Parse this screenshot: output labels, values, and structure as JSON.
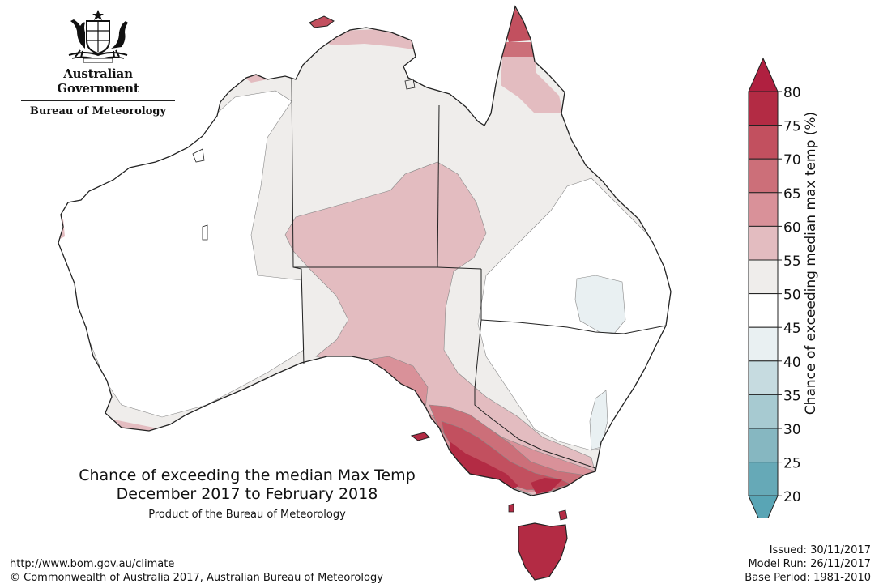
{
  "header": {
    "government": "Australian Government",
    "bureau": "Bureau of Meteorology"
  },
  "map": {
    "title_line1": "Chance of exceeding the median Max Temp",
    "title_line2": "December 2017 to February 2018",
    "product": "Product of the Bureau of Meteorology"
  },
  "legend": {
    "label": "Chance of exceeding median max temp (%)",
    "ticks": [
      "80",
      "75",
      "70",
      "65",
      "60",
      "55",
      "50",
      "45",
      "40",
      "35",
      "30",
      "25",
      "20"
    ],
    "colors": {
      "75-80": "#b32b44",
      "70-75": "#c2505f",
      "65-70": "#cc6f79",
      "60-65": "#d99199",
      "55-60": "#e3bcc0",
      "50-55": "#efedeb",
      "45-50": "#ffffff",
      "40-45": "#e9f0f2",
      "35-40": "#c6dbe0",
      "30-35": "#a7cad1",
      "25-30": "#86b7c1",
      "20-25": "#66a9b7"
    },
    "over_color": "#b02040",
    "under_color": "#59a5b5"
  },
  "footer": {
    "url": "http://www.bom.gov.au/climate",
    "copyright": "© Commonwealth of Australia 2017, Australian Bureau of Meteorology",
    "issued": "Issued: 30/11/2017",
    "model_run": "Model Run: 26/11/2017",
    "base_period": "Base Period: 1981-2010"
  }
}
